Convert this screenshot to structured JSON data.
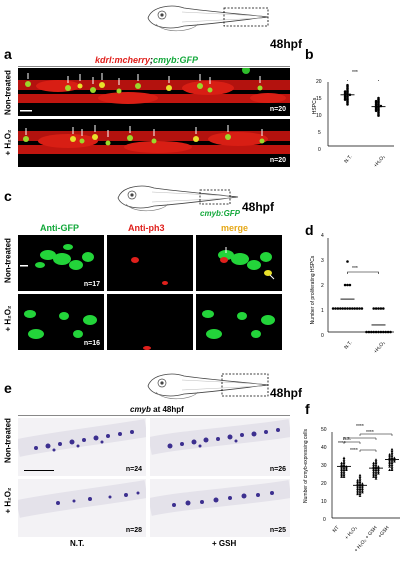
{
  "panels": {
    "a": {
      "label": "a",
      "stage": "48hpf",
      "transgene_red": "kdrl:mcherry",
      "transgene_sep": ";",
      "transgene_green": "cmyb:GFP",
      "rows": [
        {
          "label": "Non-treated",
          "n": "n=20"
        },
        {
          "label": "+ H₂O₂",
          "n": "n=20"
        }
      ]
    },
    "b": {
      "label": "b",
      "ylabel": "HSPCs",
      "yticks": [
        "0",
        "5",
        "10",
        "15",
        "20"
      ],
      "categories": [
        "N.T.",
        "+H₂O₂"
      ],
      "sig": "***"
    },
    "c": {
      "label": "c",
      "stage": "48hpf",
      "line": "cmyb:GFP",
      "channels": [
        "Anti-GFP",
        "Anti-ph3",
        "merge"
      ],
      "rows": [
        {
          "label": "Non-treated",
          "n": "n=17"
        },
        {
          "label": "+ H₂O₂",
          "n": "n=16"
        }
      ]
    },
    "d": {
      "label": "d",
      "ylabel": "Number of proliferating HSPCs",
      "yticks": [
        "0",
        "1",
        "2",
        "3",
        "4"
      ],
      "categories": [
        "N.T.",
        "+H₂O₂"
      ],
      "sig": "***"
    },
    "e": {
      "label": "e",
      "stage": "48hpf",
      "probe": "cmyb",
      "probe_suffix": " at 48hpf",
      "rows": [
        "Non-treated",
        "+ H₂O₂"
      ],
      "cols": [
        "N.T.",
        "+ GSH"
      ],
      "ns": [
        "n=24",
        "n=26",
        "n=28",
        "n=25"
      ]
    },
    "f": {
      "label": "f",
      "ylabel": "Number of cmyb-expressing cells",
      "yticks": [
        "0",
        "10",
        "20",
        "30",
        "40",
        "50"
      ],
      "categories": [
        "NT",
        "+ H₂O₂",
        "+ H₂O₂ + GSH",
        "+GSH"
      ],
      "sigs": [
        "n.s.",
        "****",
        "****",
        "****",
        "****"
      ]
    }
  },
  "chart_data": [
    {
      "type": "scatter",
      "panel": "b",
      "ylabel": "HSPCs",
      "ylim": [
        0,
        20
      ],
      "categories": [
        "N.T.",
        "+H₂O₂"
      ],
      "series": [
        {
          "values": [
            19,
            18.5,
            18,
            17.5,
            17,
            17,
            16.5,
            16.5,
            16,
            16,
            16,
            15.5,
            15.5,
            15,
            15,
            14.5,
            14.5,
            14,
            13.5,
            13
          ]
        },
        {
          "values": [
            15,
            14.5,
            14,
            14,
            13.5,
            13.5,
            13,
            13,
            12.5,
            12.5,
            12.5,
            12,
            12,
            11.5,
            11.5,
            11,
            11,
            10.5,
            10,
            9.5
          ]
        }
      ],
      "means": [
        16,
        12.3
      ]
    },
    {
      "type": "scatter",
      "panel": "d",
      "ylabel": "Number of proliferating HSPCs",
      "ylim": [
        0,
        4
      ],
      "categories": [
        "N.T.",
        "+H₂O₂"
      ],
      "series": [
        {
          "values": [
            3,
            2,
            2,
            2,
            1,
            1,
            1,
            1,
            1,
            1,
            1,
            1,
            1,
            1,
            1,
            1,
            1
          ]
        },
        {
          "values": [
            1,
            1,
            1,
            1,
            1,
            0,
            0,
            0,
            0,
            0,
            0,
            0,
            0,
            0,
            0,
            0
          ]
        }
      ],
      "means": [
        1.4,
        0.3
      ]
    },
    {
      "type": "scatter",
      "panel": "f",
      "ylabel": "Number of cmyb-expressing cells",
      "ylim": [
        0,
        50
      ],
      "categories": [
        "NT",
        "+ H₂O₂",
        "+ H₂O₂ + GSH",
        "+GSH"
      ],
      "series": [
        {
          "values": [
            35,
            34,
            33,
            32,
            32,
            31,
            31,
            30,
            30,
            30,
            29,
            29,
            29,
            28,
            28,
            28,
            27,
            27,
            26,
            26,
            25,
            25,
            24,
            24
          ]
        },
        {
          "values": [
            25,
            24,
            23,
            22,
            22,
            21,
            21,
            20,
            20,
            20,
            19,
            19,
            19,
            18,
            18,
            18,
            17,
            17,
            17,
            16,
            16,
            16,
            15,
            15,
            15,
            14,
            14,
            13
          ]
        },
        {
          "values": [
            34,
            33,
            32,
            32,
            31,
            31,
            30,
            30,
            30,
            29,
            29,
            29,
            28,
            28,
            28,
            27,
            27,
            27,
            26,
            26,
            26,
            25,
            25,
            24,
            24,
            23
          ]
        },
        {
          "values": [
            40,
            39,
            38,
            37,
            37,
            36,
            36,
            35,
            35,
            35,
            34,
            34,
            34,
            33,
            33,
            33,
            32,
            32,
            31,
            31,
            30,
            30,
            29,
            28,
            28
          ]
        }
      ],
      "means": [
        30,
        19,
        29,
        34
      ]
    }
  ]
}
